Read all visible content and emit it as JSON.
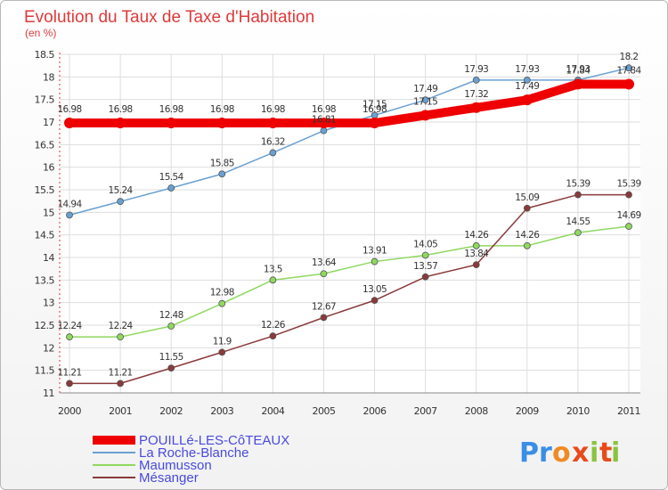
{
  "header": {
    "title": "Evolution du Taux de Taxe d'Habitation",
    "subtitle": "(en %)"
  },
  "logo": {
    "letters": [
      "P",
      "r",
      "o",
      "x",
      "i",
      "t",
      "i"
    ],
    "colors": [
      "#3a8ee6",
      "#3a8ee6",
      "#f08a24",
      "#e84a1a",
      "#8ac43f",
      "#e84a1a",
      "#8ac43f"
    ]
  },
  "chart_data": {
    "type": "line",
    "title": "Evolution du Taux de Taxe d'Habitation",
    "subtitle": "(en %)",
    "xlabel": "",
    "ylabel": "",
    "x": [
      "2000",
      "2001",
      "2002",
      "2003",
      "2004",
      "2005",
      "2006",
      "2007",
      "2008",
      "2009",
      "2010",
      "2011"
    ],
    "ylim": [
      11,
      18.5
    ],
    "yticks": [
      "11",
      "11.5",
      "12",
      "12.5",
      "13",
      "13.5",
      "14",
      "14.5",
      "15",
      "15.5",
      "16",
      "16.5",
      "17",
      "17.5",
      "18",
      "18.5"
    ],
    "grid": true,
    "legend_position": "bottom-left",
    "series": [
      {
        "name": "POUILLé-LES-CôTEAUX",
        "color": "#ee0000",
        "values": [
          16.98,
          16.98,
          16.98,
          16.98,
          16.98,
          16.98,
          16.98,
          17.15,
          17.32,
          17.49,
          17.84,
          17.84
        ],
        "labels": [
          "16.98",
          "16.98",
          "16.98",
          "16.98",
          "16.98",
          "16.98",
          "16.98",
          "17.15",
          "17.32",
          "17.49",
          "17.84",
          "17.84"
        ]
      },
      {
        "name": "La Roche-Blanche",
        "color": "#6aa0d0",
        "values": [
          14.94,
          15.24,
          15.54,
          15.85,
          16.32,
          16.81,
          17.15,
          17.49,
          17.93,
          17.93,
          17.93,
          18.2
        ],
        "labels": [
          "14.94",
          "15.24",
          "15.54",
          "15.85",
          "16.32",
          "16.81",
          "17.15",
          "17.49",
          "17.93",
          "17.93",
          "17.93",
          "18.2"
        ]
      },
      {
        "name": "Maumusson",
        "color": "#90d860",
        "values": [
          12.24,
          12.24,
          12.48,
          12.98,
          13.5,
          13.64,
          13.91,
          14.05,
          14.26,
          14.26,
          14.55,
          14.69
        ],
        "labels": [
          "12.24",
          "12.24",
          "12.48",
          "12.98",
          "13.5",
          "13.64",
          "13.91",
          "14.05",
          "14.26",
          "14.26",
          "14.55",
          "14.69"
        ]
      },
      {
        "name": "Mésanger",
        "color": "#8a3a3a",
        "values": [
          11.21,
          11.21,
          11.55,
          11.9,
          12.26,
          12.67,
          13.05,
          13.57,
          13.84,
          15.09,
          15.39,
          15.39
        ],
        "labels": [
          "11.21",
          "11.21",
          "11.55",
          "11.9",
          "12.26",
          "12.67",
          "13.05",
          "13.57",
          "13.84",
          "15.09",
          "15.39",
          "15.39"
        ]
      }
    ]
  }
}
